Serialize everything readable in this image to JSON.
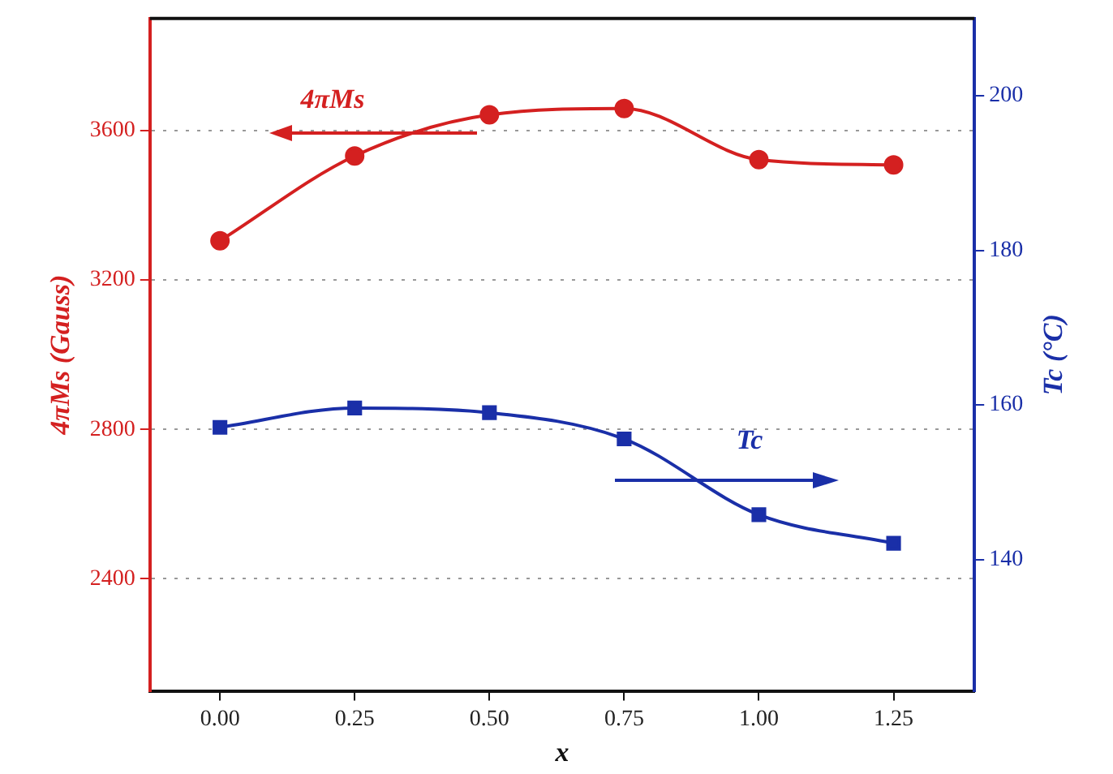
{
  "chart_data": {
    "type": "line",
    "xlabel": "x",
    "ylabel": "4πMs (Gauss)",
    "y2label": "Tc (°C)",
    "x": [
      0,
      0.25,
      0.5,
      0.75,
      1,
      1.25
    ],
    "series": [
      {
        "name": "4πMs",
        "color": "#d42020",
        "marker": "circle",
        "values": [
          3305,
          3532,
          3642,
          3659,
          3522,
          3508
        ]
      },
      {
        "name": "Tc",
        "axis": "y2",
        "color": "#1a2fa8",
        "marker": "square",
        "values": [
          157.1,
          159.6,
          159.0,
          155.6,
          145.8,
          142.1
        ]
      }
    ],
    "xlim": [
      -0.13,
      1.4
    ],
    "xticks": [
      {
        "value": 0,
        "label": "0.00"
      },
      {
        "value": 0.25,
        "label": "0.25"
      },
      {
        "value": 0.5,
        "label": "0.50"
      },
      {
        "value": 0.75,
        "label": "0.75"
      },
      {
        "value": 1,
        "label": "1.00"
      },
      {
        "value": 1.25,
        "label": "1.25"
      }
    ],
    "ylim": [
      2100,
      3900
    ],
    "yticks": [
      2400,
      2800,
      3200,
      3600
    ],
    "y2lim": [
      123,
      210
    ],
    "y2ticks": [
      140,
      160,
      180,
      200
    ],
    "grid": "y",
    "legend": false
  }
}
